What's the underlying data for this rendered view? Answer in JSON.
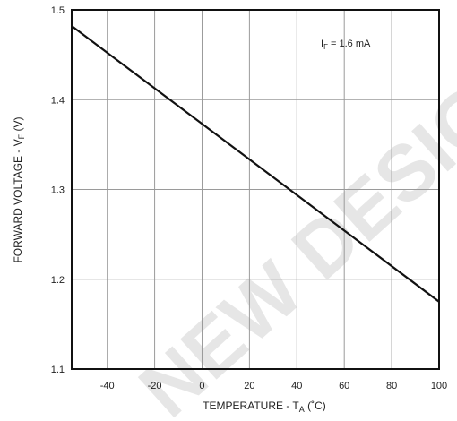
{
  "chart_data": {
    "type": "line",
    "xlabel_main": "TEMPERATURE - T",
    "xlabel_sub": "A",
    "xlabel_tail": " (˚C)",
    "ylabel_main": "FORWARD VOLTAGE - V",
    "ylabel_sub": "F",
    "ylabel_tail": " (V)",
    "annotation_main": "I",
    "annotation_sub": "F",
    "annotation_tail": " = 1.6 mA",
    "xlim": [
      -55,
      100
    ],
    "ylim": [
      1.1,
      1.5
    ],
    "x_ticks": [
      -40,
      -20,
      0,
      20,
      40,
      60,
      80,
      100
    ],
    "y_ticks": [
      1.1,
      1.2,
      1.3,
      1.4,
      1.5
    ],
    "x_tick_labels": [
      "-40",
      "-20",
      "0",
      "20",
      "40",
      "60",
      "80",
      "100"
    ],
    "y_tick_labels": [
      "1.1",
      "1.2",
      "1.3",
      "1.4",
      "1.5"
    ],
    "grid": true,
    "series": [
      {
        "x": [
          -55,
          100
        ],
        "y": [
          1.482,
          1.175
        ]
      }
    ],
    "watermark": "NEW DESIGN",
    "colors": {
      "line": "#111111",
      "grid": "#9a9a9a",
      "frame": "#111111",
      "watermark": "#e6e6e6"
    }
  }
}
